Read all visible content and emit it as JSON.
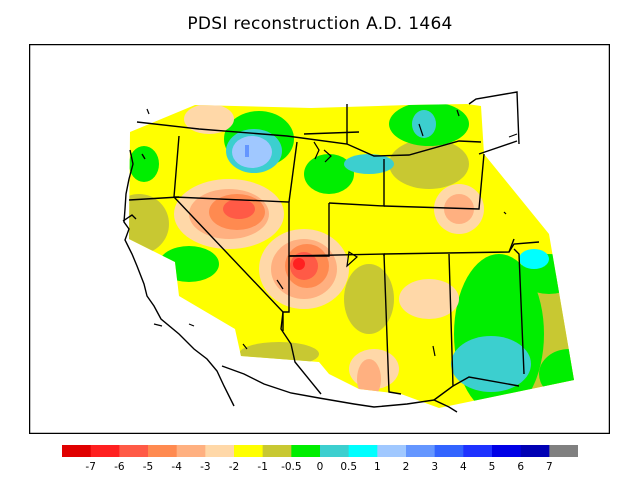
{
  "title": "PDSI reconstruction A.D. 1464",
  "legend": {
    "colors": [
      "#e00000",
      "#ff2020",
      "#ff5a46",
      "#ff8a50",
      "#ffb080",
      "#ffd8a8",
      "#ffff00",
      "#c8c832",
      "#00ee00",
      "#3ccfcf",
      "#00ffff",
      "#a0c8ff",
      "#6496ff",
      "#3264ff",
      "#1e32ff",
      "#0000e6",
      "#0000b4",
      "#808080"
    ],
    "labels": [
      "-7",
      "-6",
      "-5",
      "-4",
      "-3",
      "-2",
      "-1",
      "-0.5",
      "0",
      "0.5",
      "1",
      "2",
      "3",
      "4",
      "5",
      "6",
      "7"
    ]
  },
  "fills": {
    "base": "#ffff00",
    "olive": "#c8c832",
    "green": "#00ee00",
    "teal": "#3ccfcf",
    "cyan": "#00ffff",
    "lightblue": "#a0c8ff",
    "blue": "#6496ff",
    "peach": "#ffd8a8",
    "salmon": "#ffb080",
    "orange": "#ff8a50",
    "red": "#ff5a46",
    "darkred": "#ff2020"
  }
}
